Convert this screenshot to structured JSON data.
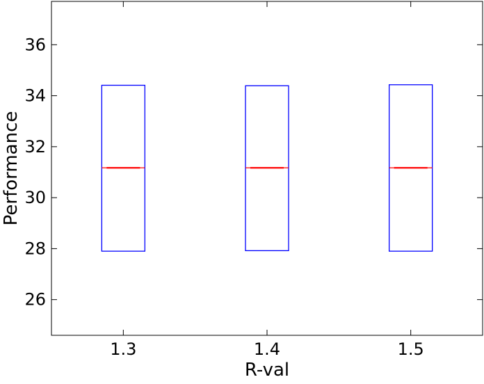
{
  "chart_data": {
    "type": "box",
    "categories": [
      "1.3",
      "1.4",
      "1.5"
    ],
    "boxes": [
      {
        "category": "1.3",
        "q1": 27.9,
        "median": 31.17,
        "q3": 34.41
      },
      {
        "category": "1.4",
        "q1": 27.92,
        "median": 31.17,
        "q3": 34.39
      },
      {
        "category": "1.5",
        "q1": 27.9,
        "median": 31.17,
        "q3": 34.43
      }
    ],
    "xlabel": "R-val",
    "ylabel": "Performance",
    "ylim": [
      24.6,
      37.7
    ],
    "yticks": [
      26,
      28,
      30,
      32,
      34,
      36
    ],
    "grid": false,
    "colors": {
      "box": "#0000ff",
      "median": "#ff0000",
      "axes": "#000000"
    }
  }
}
